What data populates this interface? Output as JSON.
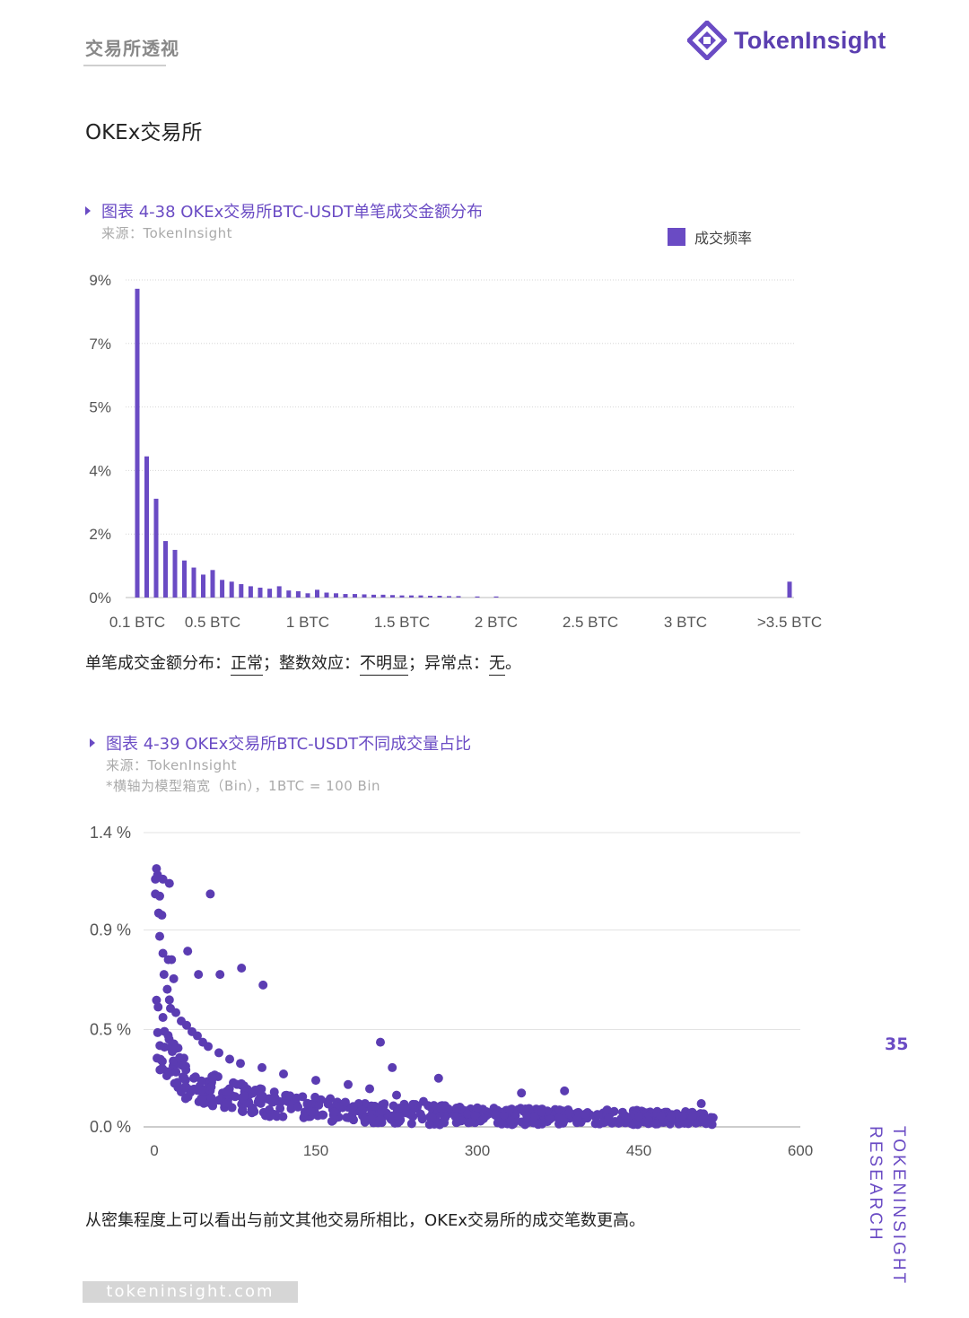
{
  "header": {
    "section": "交易所透视",
    "brand": "TokenInsight",
    "logo_icon": "tokeninsight-logo-icon"
  },
  "page_heading": "OKEx交易所",
  "chart1": {
    "title": "图表 4-38 OKEx交易所BTC-USDT单笔成交金额分布",
    "source": "来源：TokenInsight",
    "legend": "成交频率",
    "note": {
      "a": "单笔成交金额分布：",
      "b": "正常",
      "c": "；整数效应：",
      "d": "不明显",
      "e": "；异常点：",
      "f": "无",
      "g": "。"
    }
  },
  "chart2": {
    "title": "图表 4-39 OKEx交易所BTC-USDT不同成交量占比",
    "source": "来源：TokenInsight",
    "footnote": "*横轴为模型箱宽（Bin），1BTC = 100 Bin"
  },
  "conclusion": "从密集程度上可以看出与前文其他交易所相比，OKEx交易所的成交笔数更高。",
  "page_number": "35",
  "side_text": {
    "line1": "TOKENINSIGHT",
    "line2": "RESEARCH"
  },
  "footer_url": "tokeninsight.com",
  "colors": {
    "accent": "#6a4bc4",
    "scatter": "#5b3cb2",
    "grid": "#cccccc"
  },
  "chart_data": [
    {
      "type": "bar",
      "y_tick_labels": [
        "0%",
        "2%",
        "4%",
        "5%",
        "7%",
        "9%"
      ],
      "y_tick_values": [
        0,
        1.8,
        3.6,
        5.4,
        7.2,
        9.0
      ],
      "ylim": [
        0,
        9
      ],
      "x_tick_labels": [
        "0.1 BTC",
        "0.5 BTC",
        "1 BTC",
        "1.5 BTC",
        "2 BTC",
        "2.5 BTC",
        "3 BTC",
        ">3.5 BTC"
      ],
      "x_tick_values": [
        0.1,
        0.5,
        1.0,
        1.5,
        2.0,
        2.5,
        3.0,
        3.5
      ],
      "xlim": [
        0.1,
        3.5
      ],
      "series": [
        {
          "name": "成交频率",
          "x": [
            0.1,
            0.15,
            0.2,
            0.25,
            0.3,
            0.35,
            0.4,
            0.45,
            0.5,
            0.55,
            0.6,
            0.65,
            0.7,
            0.75,
            0.8,
            0.85,
            0.9,
            0.95,
            1.0,
            1.05,
            1.1,
            1.15,
            1.2,
            1.25,
            1.3,
            1.35,
            1.4,
            1.45,
            1.5,
            1.55,
            1.6,
            1.65,
            1.7,
            1.75,
            1.8,
            1.9,
            2.0,
            3.5
          ],
          "values": [
            8.75,
            4.0,
            2.8,
            1.6,
            1.35,
            1.05,
            0.85,
            0.65,
            0.78,
            0.5,
            0.45,
            0.38,
            0.32,
            0.28,
            0.25,
            0.32,
            0.2,
            0.18,
            0.12,
            0.22,
            0.14,
            0.12,
            0.1,
            0.1,
            0.09,
            0.08,
            0.08,
            0.07,
            0.06,
            0.06,
            0.06,
            0.05,
            0.05,
            0.04,
            0.04,
            0.03,
            0.03,
            0.45
          ]
        }
      ]
    },
    {
      "type": "scatter",
      "y_tick_labels": [
        "0.0 %",
        "0.5 %",
        "0.9 %",
        "1.4 %"
      ],
      "y_tick_values": [
        0.0,
        0.46,
        0.93,
        1.39
      ],
      "ylim": [
        0,
        1.39
      ],
      "x_ticks": [
        0,
        150,
        300,
        450,
        600
      ],
      "xlim": [
        0,
        600
      ],
      "highlighted_points": [
        [
          2,
          1.22
        ],
        [
          3,
          1.19
        ],
        [
          1,
          1.17
        ],
        [
          8,
          1.17
        ],
        [
          14,
          1.15
        ],
        [
          52,
          1.1
        ],
        [
          1,
          1.1
        ],
        [
          5,
          1.09
        ],
        [
          4,
          1.01
        ],
        [
          7,
          1.0
        ],
        [
          5,
          0.9
        ],
        [
          31,
          0.83
        ],
        [
          8,
          0.82
        ],
        [
          16,
          0.79
        ],
        [
          13,
          0.79
        ],
        [
          81,
          0.75
        ],
        [
          41,
          0.72
        ],
        [
          61,
          0.72
        ],
        [
          9,
          0.72
        ],
        [
          18,
          0.7
        ],
        [
          101,
          0.67
        ],
        [
          12,
          0.65
        ],
        [
          14,
          0.6
        ],
        [
          15,
          0.56
        ],
        [
          20,
          0.54
        ],
        [
          25,
          0.5
        ],
        [
          30,
          0.48
        ],
        [
          35,
          0.45
        ],
        [
          40,
          0.43
        ],
        [
          45,
          0.4
        ],
        [
          50,
          0.38
        ],
        [
          60,
          0.35
        ],
        [
          70,
          0.32
        ],
        [
          80,
          0.3
        ],
        [
          100,
          0.28
        ],
        [
          120,
          0.25
        ],
        [
          150,
          0.22
        ],
        [
          180,
          0.2
        ],
        [
          200,
          0.18
        ],
        [
          225,
          0.15
        ],
        [
          250,
          0.12
        ],
        [
          270,
          0.1
        ],
        [
          300,
          0.09
        ],
        [
          330,
          0.08
        ],
        [
          360,
          0.07
        ],
        [
          400,
          0.06
        ],
        [
          450,
          0.05
        ],
        [
          500,
          0.05
        ],
        [
          210,
          0.4
        ],
        [
          221,
          0.28
        ],
        [
          264,
          0.23
        ],
        [
          341,
          0.16
        ],
        [
          381,
          0.17
        ],
        [
          508,
          0.11
        ]
      ],
      "trend": {
        "form": "a/(x+b)+c",
        "a": 30,
        "b": 25,
        "c": 0.02,
        "n_points": 620,
        "x_range": [
          2,
          520
        ]
      }
    }
  ]
}
